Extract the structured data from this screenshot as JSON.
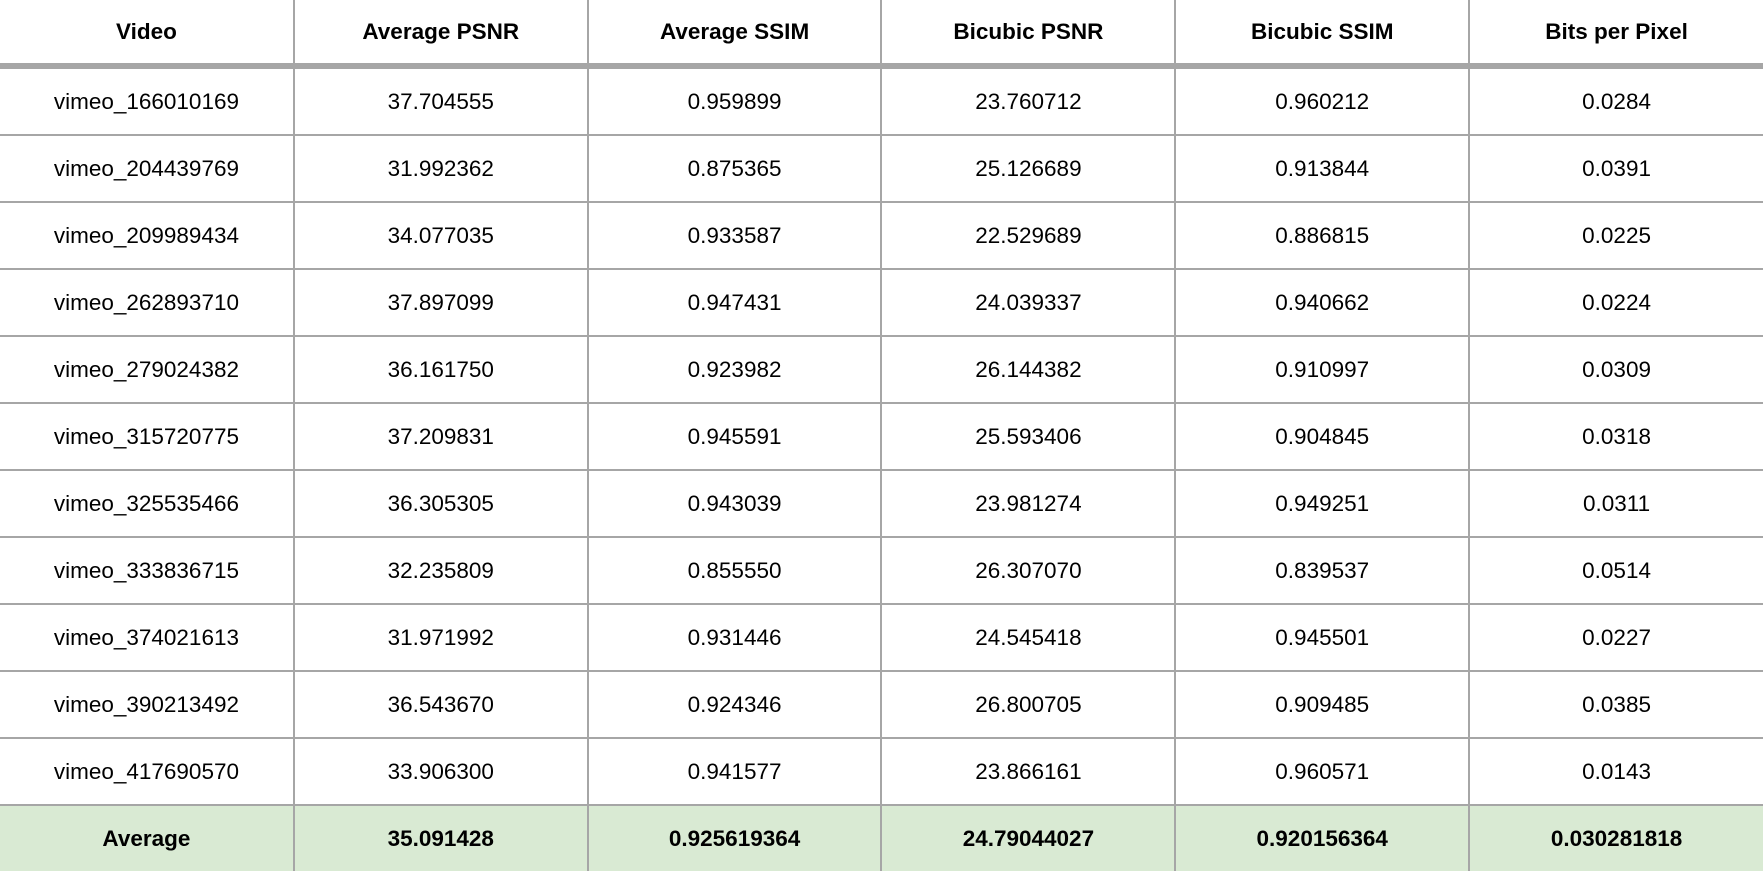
{
  "table": {
    "headers": [
      "Video",
      "Average PSNR",
      "Average SSIM",
      "Bicubic PSNR",
      "Bicubic SSIM",
      "Bits per Pixel"
    ],
    "rows": [
      [
        "vimeo_166010169",
        "37.704555",
        "0.959899",
        "23.760712",
        "0.960212",
        "0.0284"
      ],
      [
        "vimeo_204439769",
        "31.992362",
        "0.875365",
        "25.126689",
        "0.913844",
        "0.0391"
      ],
      [
        "vimeo_209989434",
        "34.077035",
        "0.933587",
        "22.529689",
        "0.886815",
        "0.0225"
      ],
      [
        "vimeo_262893710",
        "37.897099",
        "0.947431",
        "24.039337",
        "0.940662",
        "0.0224"
      ],
      [
        "vimeo_279024382",
        "36.161750",
        "0.923982",
        "26.144382",
        "0.910997",
        "0.0309"
      ],
      [
        "vimeo_315720775",
        "37.209831",
        "0.945591",
        "25.593406",
        "0.904845",
        "0.0318"
      ],
      [
        "vimeo_325535466",
        "36.305305",
        "0.943039",
        "23.981274",
        "0.949251",
        "0.0311"
      ],
      [
        "vimeo_333836715",
        "32.235809",
        "0.855550",
        "26.307070",
        "0.839537",
        "0.0514"
      ],
      [
        "vimeo_374021613",
        "31.971992",
        "0.931446",
        "24.545418",
        "0.945501",
        "0.0227"
      ],
      [
        "vimeo_390213492",
        "36.543670",
        "0.924346",
        "26.800705",
        "0.909485",
        "0.0385"
      ],
      [
        "vimeo_417690570",
        "33.906300",
        "0.941577",
        "23.866161",
        "0.960571",
        "0.0143"
      ]
    ],
    "footer": [
      "Average",
      "35.091428",
      "0.925619364",
      "24.79044027",
      "0.920156364",
      "0.030281818"
    ]
  },
  "colors": {
    "border": "#a6a6a6",
    "footer_background": "#d9ead3"
  }
}
